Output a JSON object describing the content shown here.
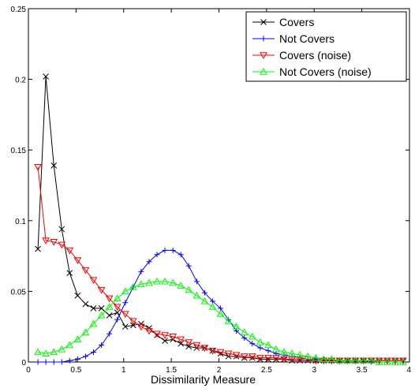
{
  "chart_data": {
    "type": "line",
    "title": "",
    "xlabel": "Dissimilarity Measure",
    "ylabel": "",
    "xlim": [
      0,
      4
    ],
    "ylim": [
      0,
      0.25
    ],
    "xticks": [
      0,
      0.5,
      1,
      1.5,
      2,
      2.5,
      3,
      3.5,
      4
    ],
    "xtick_labels": [
      "0",
      "0.5",
      "1",
      "1.5",
      "2",
      "2.5",
      "3",
      "3.5",
      "4"
    ],
    "yticks": [
      0,
      0.05,
      0.1,
      0.15,
      0.2,
      0.25
    ],
    "ytick_labels": [
      "0",
      "0.05",
      "0.1",
      "0.15",
      "0.2",
      "0.25"
    ],
    "grid": false,
    "legend_position": "top-right",
    "x": [
      0.1,
      0.183,
      0.267,
      0.35,
      0.433,
      0.517,
      0.6,
      0.683,
      0.767,
      0.85,
      0.933,
      1.017,
      1.1,
      1.183,
      1.267,
      1.35,
      1.433,
      1.517,
      1.6,
      1.683,
      1.767,
      1.85,
      1.933,
      2.017,
      2.1,
      2.183,
      2.267,
      2.35,
      2.433,
      2.517,
      2.6,
      2.683,
      2.767,
      2.85,
      2.933,
      3.017,
      3.1,
      3.183,
      3.267,
      3.35,
      3.433,
      3.517,
      3.6,
      3.683,
      3.767,
      3.85,
      3.933
    ],
    "series": [
      {
        "name": "Covers",
        "color": "#000000",
        "marker": "x",
        "values": [
          0.08,
          0.202,
          0.139,
          0.094,
          0.063,
          0.047,
          0.041,
          0.038,
          0.038,
          0.033,
          0.035,
          0.025,
          0.026,
          0.027,
          0.024,
          0.019,
          0.015,
          0.016,
          0.013,
          0.011,
          0.01,
          0.01,
          0.008,
          0.006,
          0.004,
          0.004,
          0.003,
          0.003,
          0.002,
          0.002,
          0.002,
          0.002,
          0.001,
          0.001,
          0.001,
          0.001,
          0.001,
          0.001,
          0.001,
          0.001,
          0.001,
          0.001,
          0.001,
          0.001,
          0.001,
          0.001,
          0.001
        ]
      },
      {
        "name": "Not Covers",
        "color": "#0000ff",
        "marker": "+",
        "values": [
          0.0,
          0.0,
          0.0,
          0.0,
          0.001,
          0.002,
          0.004,
          0.007,
          0.012,
          0.02,
          0.03,
          0.042,
          0.053,
          0.064,
          0.071,
          0.076,
          0.079,
          0.079,
          0.076,
          0.068,
          0.057,
          0.049,
          0.043,
          0.038,
          0.03,
          0.022,
          0.017,
          0.013,
          0.01,
          0.008,
          0.006,
          0.005,
          0.004,
          0.003,
          0.002,
          0.002,
          0.002,
          0.001,
          0.001,
          0.001,
          0.001,
          0.001,
          0.0,
          0.0,
          0.0,
          0.0,
          0.0
        ]
      },
      {
        "name": "Covers (noise)",
        "color": "#ff0000",
        "marker": "triangle-down",
        "values": [
          0.138,
          0.086,
          0.085,
          0.083,
          0.079,
          0.072,
          0.065,
          0.058,
          0.051,
          0.045,
          0.039,
          0.034,
          0.029,
          0.025,
          0.022,
          0.02,
          0.019,
          0.018,
          0.016,
          0.014,
          0.012,
          0.01,
          0.008,
          0.007,
          0.006,
          0.005,
          0.004,
          0.004,
          0.003,
          0.003,
          0.003,
          0.002,
          0.002,
          0.002,
          0.002,
          0.001,
          0.001,
          0.001,
          0.001,
          0.001,
          0.001,
          0.001,
          0.001,
          0.001,
          0.001,
          0.001,
          0.001
        ]
      },
      {
        "name": "Not Covers (noise)",
        "color": "#00ff00",
        "marker": "triangle-up",
        "values": [
          0.007,
          0.006,
          0.007,
          0.009,
          0.012,
          0.016,
          0.021,
          0.027,
          0.033,
          0.039,
          0.045,
          0.05,
          0.053,
          0.055,
          0.056,
          0.057,
          0.057,
          0.056,
          0.054,
          0.051,
          0.047,
          0.043,
          0.039,
          0.034,
          0.029,
          0.025,
          0.021,
          0.018,
          0.014,
          0.012,
          0.009,
          0.007,
          0.006,
          0.005,
          0.004,
          0.003,
          0.002,
          0.002,
          0.001,
          0.001,
          0.001,
          0.001,
          0.001,
          0.0,
          0.0,
          0.0,
          0.0
        ]
      }
    ]
  }
}
